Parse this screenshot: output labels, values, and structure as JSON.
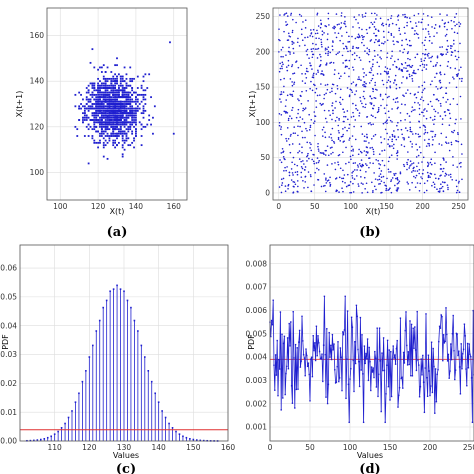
{
  "colors": {
    "points": "#1f1fcf",
    "reference_line": "#e03030",
    "frame": "#555555",
    "grid": "#dddddd"
  },
  "chart_data": [
    {
      "id": "a",
      "panel_label": "(a)",
      "type": "scatter",
      "xlabel": "X(t)",
      "ylabel": "X(t+1)",
      "xlim": [
        93,
        167
      ],
      "ylim": [
        88,
        172
      ],
      "xticks": [
        100,
        120,
        140,
        160
      ],
      "yticks": [
        100,
        120,
        140,
        160
      ],
      "distribution": {
        "mean": 128,
        "std": 7,
        "points": 1400,
        "seed": 11
      },
      "outliers": [
        [
          158,
          157
        ],
        [
          145,
          143
        ],
        [
          115,
          104
        ]
      ],
      "grid": true
    },
    {
      "id": "b",
      "panel_label": "(b)",
      "type": "scatter",
      "xlabel": "X(t)",
      "ylabel": "X(t+1)",
      "xlim": [
        -8,
        263
      ],
      "ylim": [
        -10,
        262
      ],
      "xticks": [
        0,
        50,
        100,
        150,
        200,
        250
      ],
      "yticks": [
        0,
        50,
        100,
        150,
        200,
        250
      ],
      "distribution": {
        "min": 0,
        "max": 255,
        "points": 1500,
        "seed": 23
      },
      "grid": true
    },
    {
      "id": "c",
      "panel_label": "(c)",
      "type": "bar",
      "xlabel": "Values",
      "ylabel": "PDF",
      "xlim": [
        100,
        160
      ],
      "ylim": [
        0,
        0.068
      ],
      "xticks": [
        110,
        120,
        130,
        140,
        150,
        160
      ],
      "yticks": [
        0.0,
        0.01,
        0.02,
        0.03,
        0.04,
        0.05,
        0.06
      ],
      "ytick_labels": [
        "0.00",
        "0.01",
        "0.02",
        "0.03",
        "0.04",
        "0.05",
        "0.06"
      ],
      "distribution": {
        "mean": 128,
        "std": 7.2,
        "peak": 0.054,
        "x_min": 102,
        "x_max": 157
      },
      "reference_value": 0.0039,
      "grid": true
    },
    {
      "id": "d",
      "panel_label": "(d)",
      "type": "line",
      "xlabel": "Values",
      "ylabel": "PDF",
      "xlim": [
        0,
        255
      ],
      "ylim": [
        0.0004,
        0.0088
      ],
      "xticks": [
        0,
        50,
        100,
        150,
        200,
        250
      ],
      "xtick_labels": [
        "0",
        "50",
        "100",
        "150",
        "200",
        "250"
      ],
      "yticks": [
        0.001,
        0.002,
        0.003,
        0.004,
        0.005,
        0.006,
        0.007,
        0.008
      ],
      "ytick_labels": [
        "0.001",
        "0.002",
        "0.003",
        "0.004",
        "0.005",
        "0.006",
        "0.007",
        "0.008"
      ],
      "distribution": {
        "mean": 0.0039,
        "spread": 0.0011,
        "min": 0.0012,
        "max": 0.0066,
        "points": 256,
        "seed": 7
      },
      "reference_value": 0.0039,
      "grid": true
    }
  ]
}
